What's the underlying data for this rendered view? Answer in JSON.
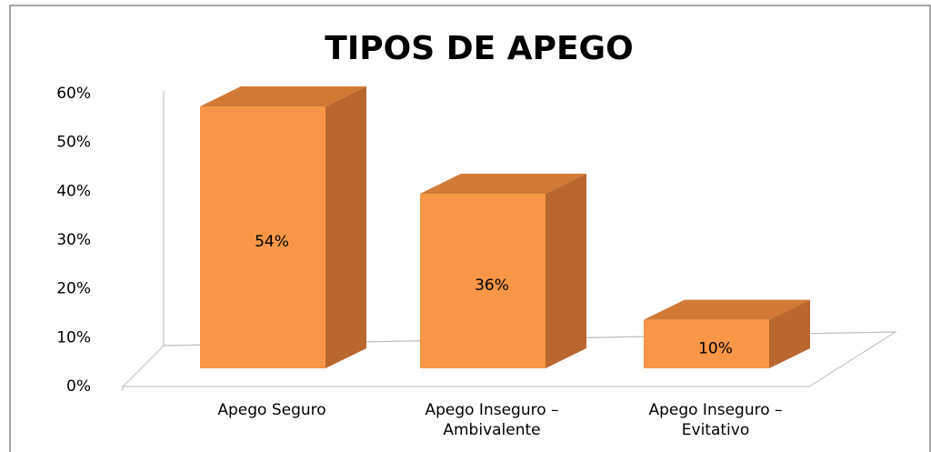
{
  "chart_data": {
    "type": "bar3d",
    "title": "TIPOS DE APEGO",
    "categories": [
      "Apego Seguro",
      "Apego Inseguro – Ambivalente",
      "Apego Inseguro – Evitativo"
    ],
    "values": [
      54,
      36,
      10
    ],
    "value_labels": [
      "54%",
      "36%",
      "10%"
    ],
    "color": "#f79646",
    "ylim": [
      0,
      60
    ],
    "yticks": [
      {
        "value": 0,
        "label": "0%"
      },
      {
        "value": 10,
        "label": "10%"
      },
      {
        "value": 20,
        "label": "20%"
      },
      {
        "value": 30,
        "label": "30%"
      },
      {
        "value": 40,
        "label": "40%"
      },
      {
        "value": 50,
        "label": "50%"
      },
      {
        "value": 60,
        "label": "60%"
      }
    ],
    "grid": false
  }
}
